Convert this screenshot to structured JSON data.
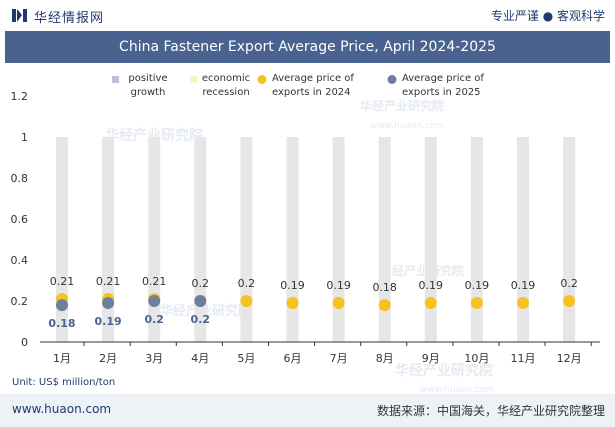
{
  "header": {
    "brand": "华经情报网",
    "tagline": "专业严谨 ● 客观科学"
  },
  "unit_label": "Unit: US$ million/ton",
  "footer": {
    "website": "www.huaon.com",
    "source": "数据来源：中国海关，华经产业研究院整理"
  },
  "watermark": {
    "text": "华经产业研究院",
    "url": "www.huaon.com"
  },
  "colors": {
    "title_bar": "#4a6290",
    "bar": "#e6e6e6",
    "series_2024": "#f5c220",
    "series_2025": "#6e7f9e"
  },
  "chart_data": {
    "type": "bar",
    "title": "China Fastener Export Average Price, April 2024-2025",
    "categories": [
      "1月",
      "2月",
      "3月",
      "4月",
      "5月",
      "6月",
      "7月",
      "8月",
      "9月",
      "10月",
      "11月",
      "12月"
    ],
    "ylim": [
      0,
      1.2
    ],
    "yticks": [
      "0",
      "0.2",
      "0.4",
      "0.6",
      "0.8",
      "1",
      "1.2"
    ],
    "legend_position": "top",
    "legend": [
      {
        "label": "positive growth",
        "line1": "positive",
        "line2": "growth",
        "marker": "square",
        "color": "#b7c3d6"
      },
      {
        "label": "economic recession",
        "line1": "economic",
        "line2": "recession",
        "marker": "square",
        "color": "#fbf1c4"
      },
      {
        "label": "Average price of exports in 2024",
        "line1": "Average price of",
        "line2": "exports in 2024",
        "marker": "circle",
        "color": "#f5c220"
      },
      {
        "label": "Average price of exports in 2025",
        "line1": "Average price of",
        "line2": "exports in 2025",
        "marker": "circle",
        "color": "#6e7f9e"
      }
    ],
    "series": [
      {
        "name": "positive growth",
        "type": "bar",
        "values": [
          1,
          1,
          1,
          1,
          1,
          1,
          1,
          1,
          1,
          1,
          1,
          1
        ]
      },
      {
        "name": "Average price of exports in 2024",
        "type": "scatter",
        "values": [
          0.21,
          0.21,
          0.21,
          0.2,
          0.2,
          0.19,
          0.19,
          0.18,
          0.19,
          0.19,
          0.19,
          0.2
        ],
        "labels": [
          "0.21",
          "0.21",
          "0.21",
          "0.2",
          "0.2",
          "0.19",
          "0.19",
          "0.18",
          "0.19",
          "0.19",
          "0.19",
          "0.2"
        ]
      },
      {
        "name": "Average price of exports in 2025",
        "type": "scatter",
        "values": [
          0.18,
          0.19,
          0.2,
          0.2
        ],
        "labels": [
          "0.18",
          "0.19",
          "0.2",
          "0.2"
        ]
      }
    ]
  }
}
